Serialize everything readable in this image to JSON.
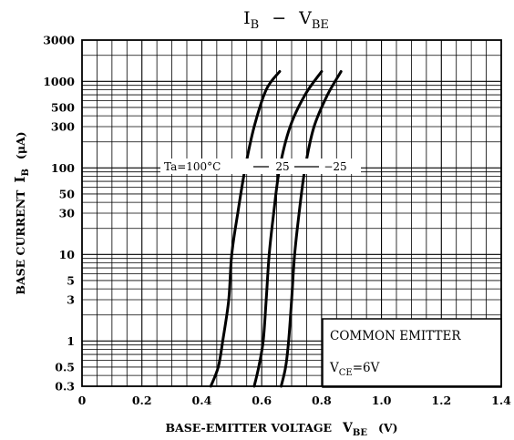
{
  "chart_data": {
    "type": "line",
    "title": "I_B − V_BE",
    "title_parts": {
      "main": "I",
      "main_sub": "B",
      "dash": "−",
      "v": "V",
      "v_sub": "BE"
    },
    "xlabel": "BASE-EMITTER VOLTAGE",
    "xlabel_symbol": {
      "main": "V",
      "sub": "BE",
      "unit": "(V)"
    },
    "ylabel": "BASE CURRENT",
    "ylabel_symbol": {
      "main": "I",
      "sub": "B",
      "unit": "(μA)"
    },
    "x_scale": "linear",
    "y_scale": "log",
    "xlim": [
      0,
      1.4
    ],
    "ylim": [
      0.3,
      3000
    ],
    "x_ticks": [
      0,
      0.2,
      0.4,
      0.6,
      0.8,
      1.0,
      1.2,
      1.4
    ],
    "x_tick_labels": [
      "0",
      "0.2",
      "0.4",
      "0.6",
      "0.8",
      "1.0",
      "1.2",
      "1.4"
    ],
    "y_ticks": [
      0.3,
      0.5,
      1,
      3,
      5,
      10,
      30,
      50,
      100,
      300,
      500,
      1000,
      3000
    ],
    "y_tick_labels": [
      "0.3",
      "0.5",
      "1",
      "3",
      "5",
      "10",
      "30",
      "50",
      "100",
      "300",
      "500",
      "1000",
      "3000"
    ],
    "grid": true,
    "series": [
      {
        "name": "Ta=100°C",
        "label": "Ta=100°C",
        "points": [
          [
            0.43,
            0.3
          ],
          [
            0.455,
            0.5
          ],
          [
            0.47,
            1
          ],
          [
            0.49,
            3
          ],
          [
            0.5,
            10
          ],
          [
            0.52,
            30
          ],
          [
            0.545,
            100
          ],
          [
            0.575,
            300
          ],
          [
            0.615,
            800
          ],
          [
            0.66,
            1300
          ]
        ]
      },
      {
        "name": "25",
        "label": "25",
        "points": [
          [
            0.575,
            0.3
          ],
          [
            0.59,
            0.5
          ],
          [
            0.605,
            1
          ],
          [
            0.615,
            3
          ],
          [
            0.625,
            10
          ],
          [
            0.64,
            30
          ],
          [
            0.66,
            100
          ],
          [
            0.695,
            300
          ],
          [
            0.745,
            700
          ],
          [
            0.8,
            1300
          ]
        ]
      },
      {
        "name": "-25",
        "label": "−25",
        "points": [
          [
            0.665,
            0.3
          ],
          [
            0.68,
            0.5
          ],
          [
            0.69,
            1
          ],
          [
            0.7,
            3
          ],
          [
            0.71,
            10
          ],
          [
            0.725,
            30
          ],
          [
            0.745,
            100
          ],
          [
            0.775,
            300
          ],
          [
            0.82,
            700
          ],
          [
            0.865,
            1300
          ]
        ]
      }
    ],
    "annotations": {
      "box_line1": "COMMON EMITTER",
      "box_line2": {
        "main": "V",
        "sub": "CE",
        "rest": "=6V"
      }
    }
  }
}
